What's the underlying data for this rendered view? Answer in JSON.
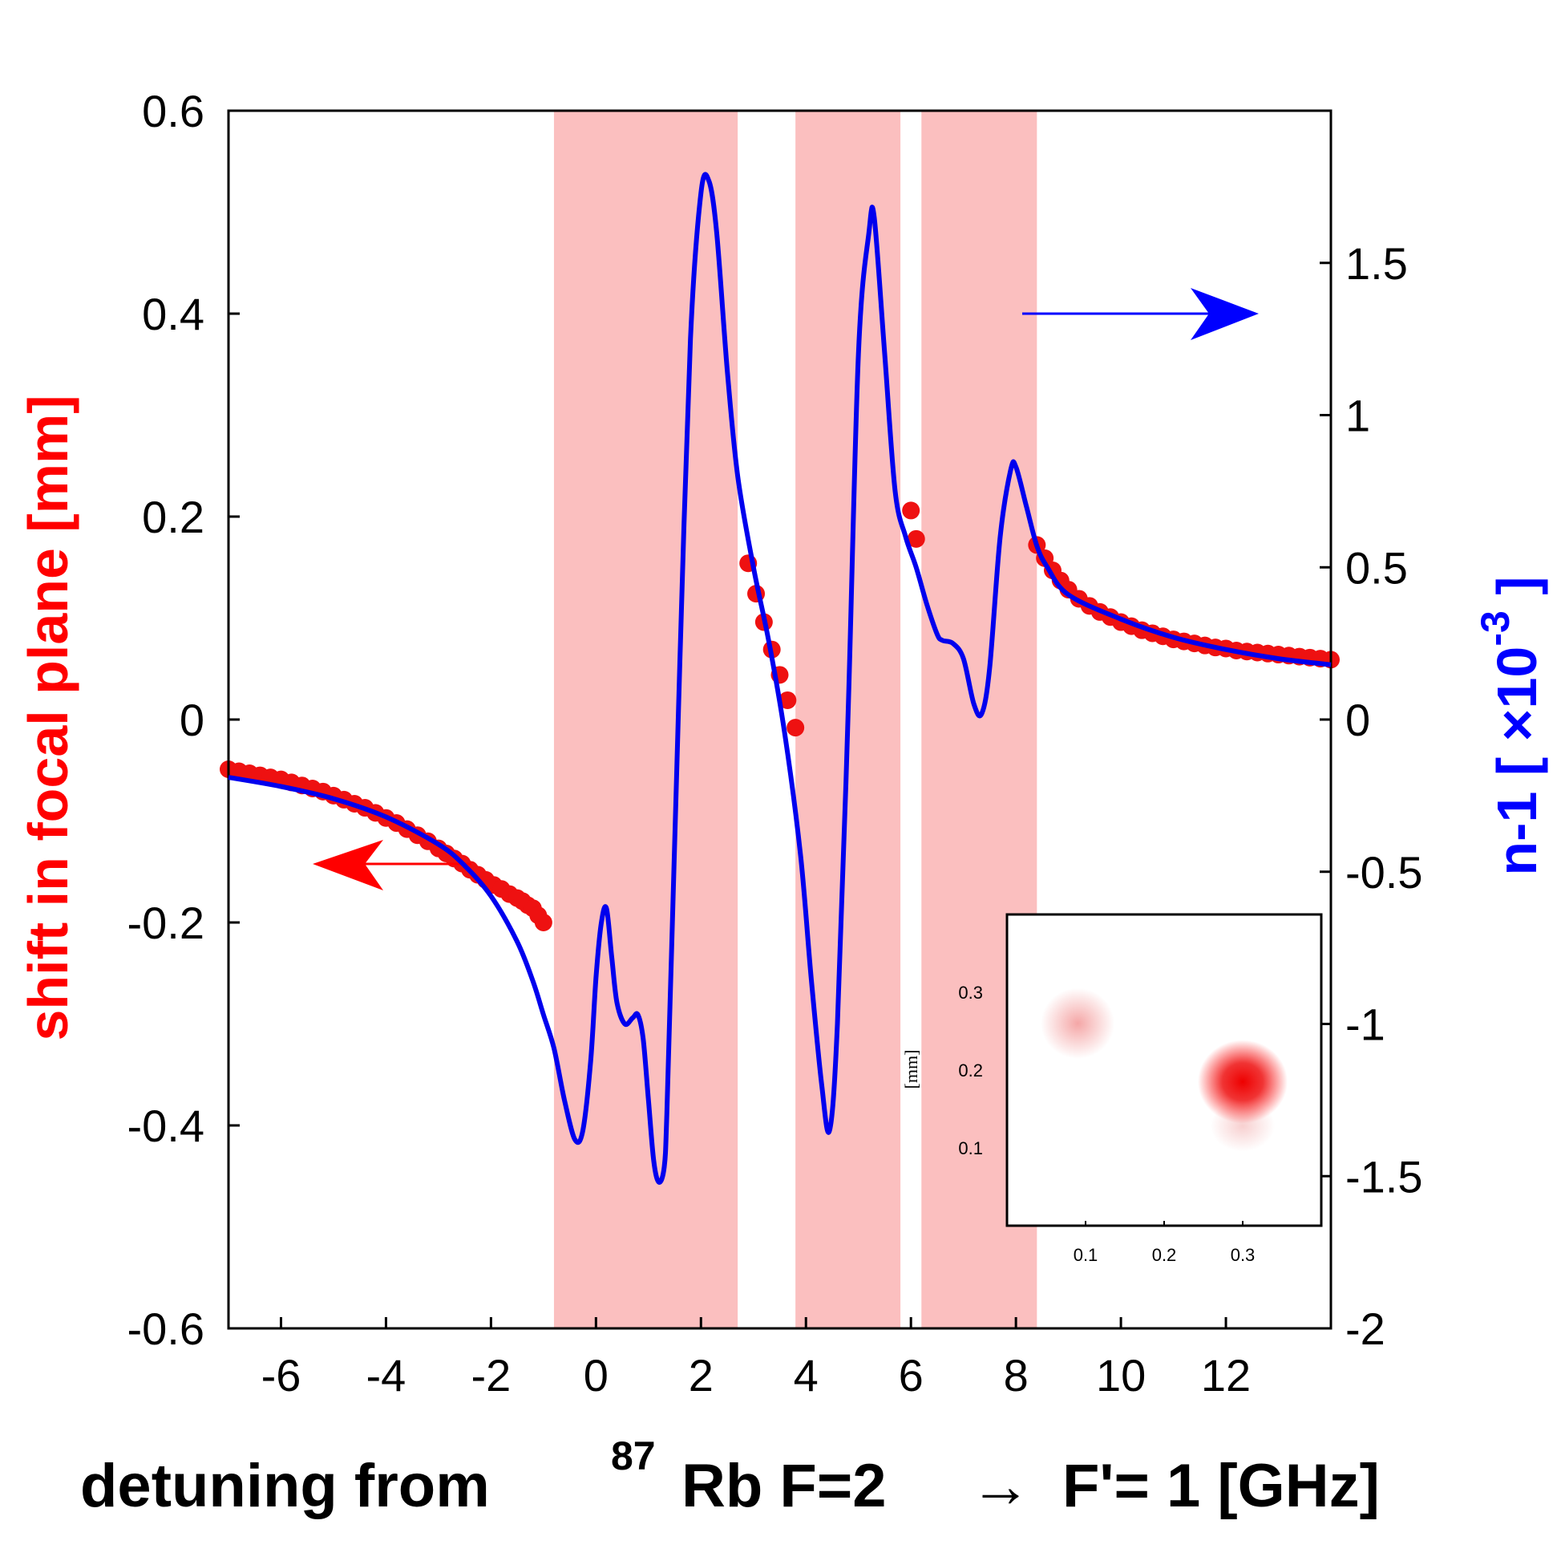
{
  "chart_data": {
    "type": "line",
    "xlabel": {
      "part1": "detuning from",
      "sup": "87",
      "part2": "Rb F=2",
      "arrow": "→",
      "part3": "F'= 1 [GHz]"
    },
    "ylabel_left": "shift in focal plane [mm]",
    "ylabel_right": {
      "text": "n-1 [ ×10",
      "sup": "-3",
      "close": " ]"
    },
    "xlim": [
      -7,
      14
    ],
    "ylim_left": [
      -0.6,
      0.6
    ],
    "ylim_right": [
      -2.0,
      2.0
    ],
    "x_ticks": [
      "-6",
      "-4",
      "-2",
      "0",
      "2",
      "4",
      "6",
      "8",
      "10",
      "12"
    ],
    "y_ticks_left": [
      "-0.6",
      "-0.4",
      "-0.2",
      "0",
      "0.2",
      "0.4",
      "0.6"
    ],
    "y_ticks_right": [
      "-2",
      "-1.5",
      "-1",
      "-0.5",
      "0",
      "0.5",
      "1",
      "1.5"
    ],
    "shaded_regions": [
      [
        -0.8,
        2.7
      ],
      [
        3.8,
        5.8
      ],
      [
        6.2,
        8.4
      ]
    ],
    "colors": {
      "shade": "#fbbfbf",
      "points": "#ee1111",
      "curve": "#0000ee",
      "left_axis": "#ff0000",
      "right_axis": "#0000ff"
    },
    "series": [
      {
        "axis": "right",
        "kind": "curve",
        "x": [
          -7,
          -6,
          -5,
          -4,
          -3,
          -2.5,
          -2,
          -1.5,
          -1.2,
          -1,
          -0.8,
          -0.6,
          -0.4,
          -0.25,
          -0.1,
          0,
          0.1,
          0.2,
          0.3,
          0.4,
          0.55,
          0.7,
          0.8,
          0.9,
          1.0,
          1.1,
          1.2,
          1.3,
          1.35,
          1.45,
          1.6,
          1.8,
          2.0,
          2.15,
          2.3,
          2.5,
          2.7,
          3.0,
          3.3,
          3.6,
          3.9,
          4.1,
          4.3,
          4.45,
          4.6,
          4.8,
          5.0,
          5.2,
          5.3,
          5.5,
          5.7,
          5.9,
          6.1,
          6.3,
          6.5,
          6.6,
          6.8,
          7.0,
          7.2,
          7.35,
          7.5,
          7.7,
          7.9,
          8.0,
          8.2,
          8.4,
          8.6,
          9,
          10,
          11,
          12,
          13,
          14
        ],
        "y": [
          -0.19,
          -0.22,
          -0.26,
          -0.32,
          -0.41,
          -0.48,
          -0.58,
          -0.73,
          -0.86,
          -0.97,
          -1.08,
          -1.25,
          -1.38,
          -1.35,
          -1.12,
          -0.85,
          -0.67,
          -0.62,
          -0.78,
          -0.93,
          -1.0,
          -0.98,
          -0.97,
          -1.05,
          -1.25,
          -1.45,
          -1.52,
          -1.47,
          -1.3,
          -0.7,
          0.2,
          1.25,
          1.73,
          1.77,
          1.6,
          1.15,
          0.8,
          0.5,
          0.25,
          -0.05,
          -0.45,
          -0.85,
          -1.2,
          -1.35,
          -1.0,
          0.0,
          1.2,
          1.6,
          1.65,
          1.2,
          0.75,
          0.6,
          0.5,
          0.38,
          0.28,
          0.26,
          0.25,
          0.2,
          0.05,
          0.02,
          0.17,
          0.6,
          0.82,
          0.83,
          0.7,
          0.57,
          0.5,
          0.41,
          0.33,
          0.27,
          0.23,
          0.2,
          0.18
        ]
      },
      {
        "axis": "left",
        "kind": "points",
        "x": [
          -7.0,
          -6.8,
          -6.6,
          -6.4,
          -6.2,
          -6.0,
          -5.8,
          -5.6,
          -5.4,
          -5.2,
          -5.0,
          -4.8,
          -4.6,
          -4.4,
          -4.2,
          -4.0,
          -3.8,
          -3.6,
          -3.4,
          -3.2,
          -3.0,
          -2.85,
          -2.7,
          -2.55,
          -2.4,
          -2.25,
          -2.1,
          -1.95,
          -1.8,
          -1.65,
          -1.5,
          -1.4,
          -1.3,
          -1.2,
          -1.1,
          -1.0,
          2.9,
          3.05,
          3.2,
          3.35,
          3.5,
          3.65,
          3.8,
          6.0,
          6.1,
          8.4,
          8.55,
          8.7,
          8.85,
          9.0,
          9.2,
          9.4,
          9.6,
          9.8,
          10.0,
          10.2,
          10.4,
          10.6,
          10.8,
          11.0,
          11.2,
          11.4,
          11.6,
          11.8,
          12.0,
          12.2,
          12.4,
          12.6,
          12.8,
          13.0,
          13.2,
          13.4,
          13.6,
          13.8,
          14.0
        ],
        "y": [
          -0.049,
          -0.051,
          -0.053,
          -0.055,
          -0.057,
          -0.059,
          -0.062,
          -0.065,
          -0.068,
          -0.071,
          -0.075,
          -0.079,
          -0.083,
          -0.087,
          -0.092,
          -0.097,
          -0.102,
          -0.108,
          -0.114,
          -0.12,
          -0.127,
          -0.132,
          -0.137,
          -0.142,
          -0.148,
          -0.153,
          -0.158,
          -0.163,
          -0.167,
          -0.172,
          -0.176,
          -0.179,
          -0.183,
          -0.186,
          -0.193,
          -0.2,
          0.154,
          0.124,
          0.096,
          0.069,
          0.044,
          0.019,
          -0.008,
          0.206,
          0.178,
          0.172,
          0.159,
          0.147,
          0.137,
          0.128,
          0.119,
          0.112,
          0.106,
          0.101,
          0.096,
          0.092,
          0.088,
          0.085,
          0.082,
          0.079,
          0.077,
          0.075,
          0.073,
          0.071,
          0.07,
          0.068,
          0.067,
          0.066,
          0.065,
          0.064,
          0.063,
          0.062,
          0.061,
          0.06,
          0.059
        ]
      }
    ],
    "annotations": [
      {
        "kind": "arrow-left",
        "color": "#ff0000",
        "meaning": "left axis"
      },
      {
        "kind": "arrow-right",
        "color": "#0000ff",
        "meaning": "right axis"
      }
    ],
    "inset": {
      "type": "heatmap",
      "ylabel": "[mm]",
      "x_ticks": [
        "0.1",
        "0.2",
        "0.3"
      ],
      "y_ticks": [
        "0.1",
        "0.2",
        "0.3"
      ],
      "xlim": [
        0.0,
        0.4
      ],
      "ylim": [
        0.0,
        0.4
      ],
      "spots": [
        {
          "x": 0.09,
          "y": 0.26,
          "relative_intensity": 0.3
        },
        {
          "x": 0.3,
          "y": 0.185,
          "relative_intensity": 1.0
        }
      ]
    }
  }
}
